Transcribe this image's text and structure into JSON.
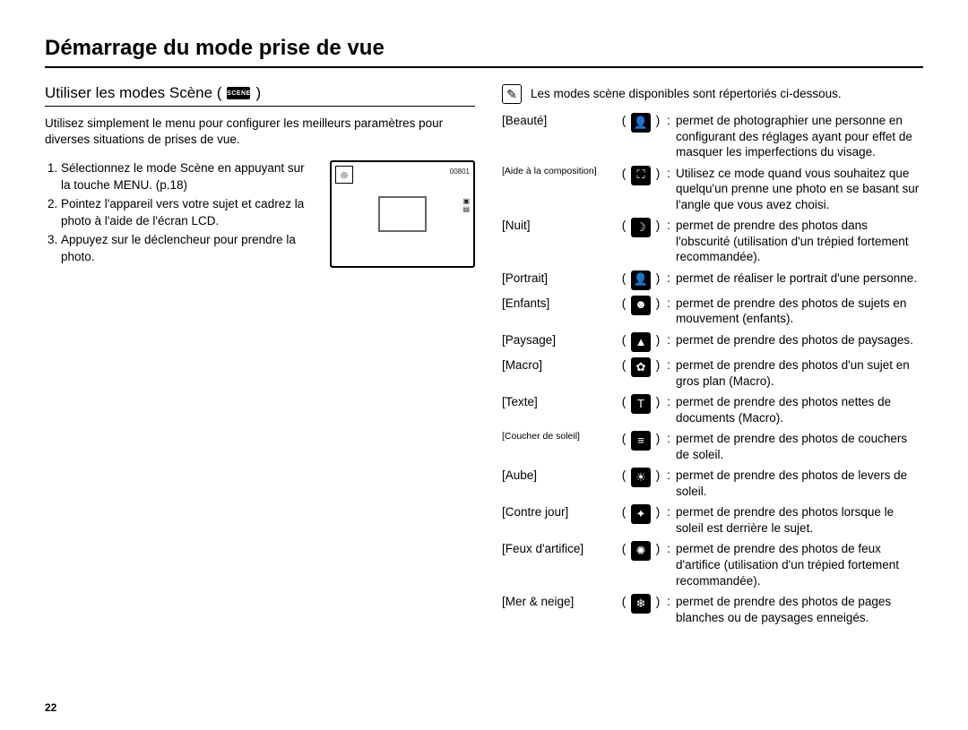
{
  "title": "Démarrage du mode prise de vue",
  "subtitle": "Utiliser les modes Scène (",
  "subtitle_badge": "SCENE",
  "subtitle_close": ")",
  "intro": "Utilisez simplement le menu pour configurer les meilleurs paramètres pour diverses situations de prises de vue.",
  "steps": [
    "Sélectionnez le mode Scène en appuyant sur la touche MENU. (p.18)",
    "Pointez l'appareil vers votre sujet et cadrez la photo à l'aide de l'écran LCD.",
    "Appuyez sur le déclencheur pour prendre la photo."
  ],
  "note_text": "Les modes scène disponibles sont répertoriés ci-dessous.",
  "modes": [
    {
      "label": "[Beauté]",
      "small": false,
      "icon": "👤",
      "desc": "permet de photographier une personne en configurant des réglages ayant pour effet de masquer les imperfections du visage."
    },
    {
      "label": "[Aide à la composition]",
      "small": true,
      "icon": "⛶",
      "desc": "Utilisez ce mode quand vous souhaitez que quelqu'un prenne une photo en se basant sur l'angle que vous avez choisi."
    },
    {
      "label": "[Nuit]",
      "small": false,
      "icon": "☽",
      "desc": "permet de prendre des photos dans l'obscurité (utilisation d'un trépied fortement recommandée)."
    },
    {
      "label": "[Portrait]",
      "small": false,
      "icon": "👤",
      "desc": "permet de réaliser le portrait d'une personne."
    },
    {
      "label": "[Enfants]",
      "small": false,
      "icon": "☻",
      "desc": "permet de prendre des photos de sujets en mouvement (enfants)."
    },
    {
      "label": "[Paysage]",
      "small": false,
      "icon": "▲",
      "desc": "permet de prendre des photos de paysages."
    },
    {
      "label": "[Macro]",
      "small": false,
      "icon": "✿",
      "desc": "permet de prendre des photos d'un sujet en gros plan (Macro)."
    },
    {
      "label": "[Texte]",
      "small": false,
      "icon": "T",
      "desc": "permet de prendre des photos nettes de documents (Macro)."
    },
    {
      "label": "[Coucher de soleil]",
      "small": true,
      "icon": "≡",
      "desc": "permet de prendre des photos de couchers de soleil."
    },
    {
      "label": "[Aube]",
      "small": false,
      "icon": "☀",
      "desc": "permet de prendre des photos de levers de soleil."
    },
    {
      "label": "[Contre jour]",
      "small": false,
      "icon": "✦",
      "desc": "permet de prendre des photos lorsque le soleil est derrière le sujet."
    },
    {
      "label": "[Feux d'artifice]",
      "small": false,
      "icon": "✺",
      "desc": "permet de prendre des photos de feux d'artifice (utilisation d'un trépied fortement recommandée)."
    },
    {
      "label": "[Mer & neige]",
      "small": false,
      "icon": "❄",
      "desc": "permet de prendre des photos de pages blanches ou de paysages enneigés."
    }
  ],
  "page_number": "22",
  "lcd_top_right": "00801",
  "colors": {
    "text": "#000000",
    "background": "#ffffff",
    "icon_bg": "#000000",
    "icon_fg": "#ffffff"
  }
}
